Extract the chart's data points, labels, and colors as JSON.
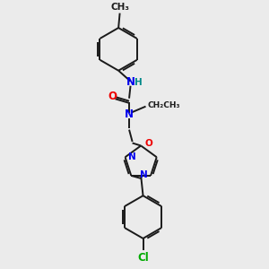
{
  "background_color": "#ebebeb",
  "bond_color": "#1a1a1a",
  "atom_colors": {
    "N": "#0000ee",
    "O": "#ee0000",
    "Cl": "#00aa00",
    "H": "#008888",
    "C": "#1a1a1a"
  },
  "figsize": [
    3.0,
    3.0
  ],
  "dpi": 100,
  "lw": 1.4,
  "fs": 8.5,
  "fs_small": 7.5
}
